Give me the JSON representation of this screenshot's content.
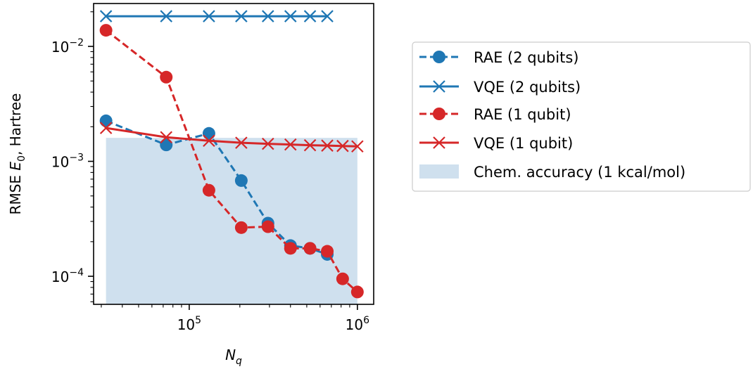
{
  "chart_data": {
    "type": "line",
    "xscale": "log",
    "yscale": "log",
    "xlabel_base": "N",
    "xlabel_sub": "q",
    "ylabel_pre": "RMSE ",
    "ylabel_var": "E",
    "ylabel_sub": "0",
    "ylabel_post": ", Hartree",
    "xlim": [
      27000,
      1250000
    ],
    "ylim": [
      5.7e-05,
      0.0236
    ],
    "x_ticks": [
      {
        "value": 100000,
        "base": "10",
        "exp": "5"
      },
      {
        "value": 1000000,
        "base": "10",
        "exp": "6"
      }
    ],
    "y_ticks": [
      {
        "value": 0.01,
        "base": "10",
        "exp": "−2"
      },
      {
        "value": 0.001,
        "base": "10",
        "exp": "−3"
      },
      {
        "value": 0.0001,
        "base": "10",
        "exp": "−4"
      }
    ],
    "legend_position": "right, outside plot",
    "series": [
      {
        "name": "RAE (2 qubits)",
        "color": "#1f77b4",
        "marker": "circle",
        "linestyle": "dashed",
        "x": [
          32000,
          73000,
          131000,
          204000,
          294000,
          400000,
          523000,
          662000
        ],
        "y": [
          0.00225,
          0.00139,
          0.00175,
          0.00068,
          0.00029,
          0.000185,
          0.000175,
          0.000155
        ]
      },
      {
        "name": "VQE (2 qubits)",
        "color": "#1f77b4",
        "marker": "x",
        "linestyle": "solid",
        "x": [
          32000,
          73000,
          131000,
          204000,
          294000,
          400000,
          523000,
          662000
        ],
        "y": [
          0.0183,
          0.0183,
          0.0183,
          0.0183,
          0.0183,
          0.0183,
          0.0183,
          0.0183
        ]
      },
      {
        "name": "RAE (1 qubit)",
        "color": "#d62728",
        "marker": "circle",
        "linestyle": "dashed",
        "x": [
          32000,
          73000,
          131000,
          204000,
          294000,
          400000,
          523000,
          662000,
          817000,
          1000000
        ],
        "y": [
          0.0138,
          0.0054,
          0.00056,
          0.000265,
          0.00027,
          0.000175,
          0.000175,
          0.000165,
          9.5e-05,
          7.3e-05
        ]
      },
      {
        "name": "VQE (1 qubit)",
        "color": "#d62728",
        "marker": "x",
        "linestyle": "solid",
        "x": [
          32000,
          73000,
          131000,
          204000,
          294000,
          400000,
          523000,
          662000,
          817000,
          1000000
        ],
        "y": [
          0.00195,
          0.00162,
          0.00151,
          0.00145,
          0.00142,
          0.0014,
          0.00138,
          0.00137,
          0.00136,
          0.00135
        ]
      }
    ],
    "shaded_region": {
      "name": "Chem. accuracy (1 kcal/mol)",
      "color": "#cfe0ee",
      "x": [
        32000,
        1000000
      ],
      "y_top": 0.0016
    }
  }
}
